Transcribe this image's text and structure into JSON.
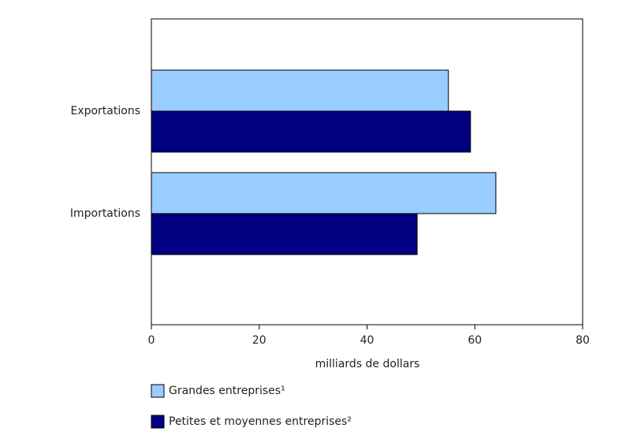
{
  "chart_data": {
    "type": "hbar",
    "categories": [
      "Exportations",
      "Importations"
    ],
    "series": [
      {
        "name": "Grandes entreprises¹",
        "color": "#99ccff",
        "values": [
          55.1,
          63.9
        ]
      },
      {
        "name": "Petites et moyennes entreprises²",
        "color": "#000080",
        "values": [
          59.2,
          49.3
        ]
      }
    ],
    "xlabel": "milliards de dollars",
    "xlim": [
      0,
      80
    ],
    "xticks": [
      0,
      20,
      40,
      60,
      80
    ]
  }
}
